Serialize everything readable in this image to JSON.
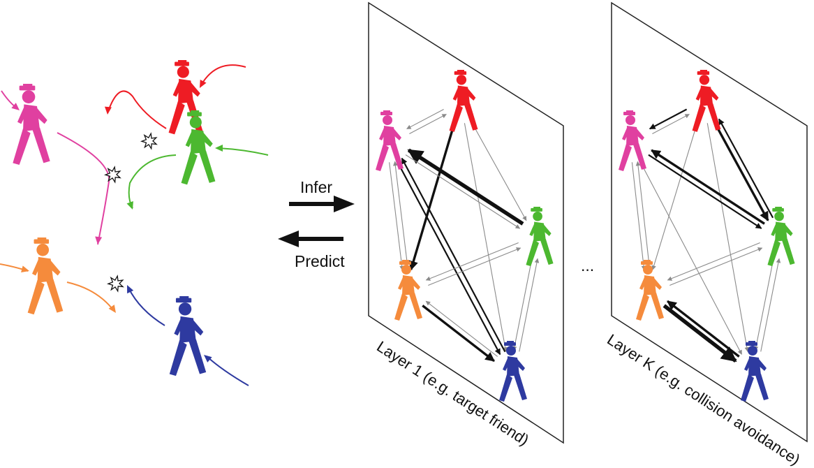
{
  "labels": {
    "infer": "Infer",
    "predict": "Predict",
    "layer1": "Layer 1 (e.g. target friend)",
    "layerK": "Layer K (e.g. collision avoidance)",
    "ellipsis": "..."
  },
  "agents": [
    {
      "id": "pink",
      "color": "#e040a0"
    },
    {
      "id": "red",
      "color": "#ee1c24"
    },
    {
      "id": "green",
      "color": "#4cb830"
    },
    {
      "id": "orange",
      "color": "#f58b3c"
    },
    {
      "id": "blue",
      "color": "#2e3aa0"
    }
  ],
  "icons": {
    "pedestrian": "walking-pedestrian-icon",
    "collision": "collision-star-icon"
  },
  "layer1_edges": [
    {
      "from": "red",
      "to": "pink",
      "weight": "thin"
    },
    {
      "from": "pink",
      "to": "red",
      "weight": "thin"
    },
    {
      "from": "red",
      "to": "orange",
      "weight": "thick"
    },
    {
      "from": "red",
      "to": "green",
      "weight": "thin"
    },
    {
      "from": "red",
      "to": "blue",
      "weight": "thin"
    },
    {
      "from": "green",
      "to": "pink",
      "weight": "heavy"
    },
    {
      "from": "pink",
      "to": "green",
      "weight": "thin"
    },
    {
      "from": "pink",
      "to": "orange",
      "weight": "thin"
    },
    {
      "from": "orange",
      "to": "pink",
      "weight": "thin"
    },
    {
      "from": "pink",
      "to": "blue",
      "weight": "medium"
    },
    {
      "from": "blue",
      "to": "pink",
      "weight": "medium"
    },
    {
      "from": "orange",
      "to": "green",
      "weight": "thin"
    },
    {
      "from": "green",
      "to": "orange",
      "weight": "thin"
    },
    {
      "from": "orange",
      "to": "blue",
      "weight": "thick"
    },
    {
      "from": "blue",
      "to": "orange",
      "weight": "thin"
    },
    {
      "from": "green",
      "to": "blue",
      "weight": "thin"
    },
    {
      "from": "blue",
      "to": "green",
      "weight": "thin"
    }
  ],
  "layerK_edges": [
    {
      "from": "red",
      "to": "pink",
      "weight": "medium"
    },
    {
      "from": "pink",
      "to": "red",
      "weight": "thin"
    },
    {
      "from": "red",
      "to": "green",
      "weight": "thick"
    },
    {
      "from": "green",
      "to": "red",
      "weight": "medium"
    },
    {
      "from": "red",
      "to": "orange",
      "weight": "thin"
    },
    {
      "from": "red",
      "to": "blue",
      "weight": "thin"
    },
    {
      "from": "green",
      "to": "pink",
      "weight": "thick"
    },
    {
      "from": "pink",
      "to": "green",
      "weight": "medium"
    },
    {
      "from": "pink",
      "to": "orange",
      "weight": "thin"
    },
    {
      "from": "orange",
      "to": "pink",
      "weight": "thin"
    },
    {
      "from": "pink",
      "to": "blue",
      "weight": "thin"
    },
    {
      "from": "orange",
      "to": "green",
      "weight": "thin"
    },
    {
      "from": "green",
      "to": "orange",
      "weight": "thin"
    },
    {
      "from": "orange",
      "to": "blue",
      "weight": "heavy"
    },
    {
      "from": "blue",
      "to": "orange",
      "weight": "thick"
    },
    {
      "from": "green",
      "to": "blue",
      "weight": "thin"
    },
    {
      "from": "blue",
      "to": "green",
      "weight": "thin"
    }
  ]
}
